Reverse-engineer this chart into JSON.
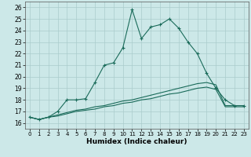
{
  "title": "",
  "xlabel": "Humidex (Indice chaleur)",
  "xlim": [
    -0.5,
    23.5
  ],
  "ylim": [
    15.5,
    26.5
  ],
  "xticks": [
    0,
    1,
    2,
    3,
    4,
    5,
    6,
    7,
    8,
    9,
    10,
    11,
    12,
    13,
    14,
    15,
    16,
    17,
    18,
    19,
    20,
    21,
    22,
    23
  ],
  "yticks": [
    16,
    17,
    18,
    19,
    20,
    21,
    22,
    23,
    24,
    25,
    26
  ],
  "bg_color": "#cce8e8",
  "grid_color": "#aacccc",
  "line_color": "#1a6b5a",
  "line1_x": [
    0,
    1,
    2,
    3,
    4,
    5,
    6,
    7,
    8,
    9,
    10,
    11,
    12,
    13,
    14,
    15,
    16,
    17,
    18,
    19,
    20,
    21,
    22,
    23
  ],
  "line1_y": [
    16.5,
    16.3,
    16.5,
    17.0,
    18.0,
    18.0,
    18.1,
    19.5,
    21.0,
    21.2,
    22.5,
    25.8,
    23.3,
    24.3,
    24.5,
    25.0,
    24.2,
    23.0,
    22.0,
    20.3,
    19.0,
    18.0,
    17.5,
    17.5
  ],
  "line2_x": [
    0,
    1,
    2,
    3,
    4,
    5,
    6,
    7,
    8,
    9,
    10,
    11,
    12,
    13,
    14,
    15,
    16,
    17,
    18,
    19,
    20,
    21,
    22,
    23
  ],
  "line2_y": [
    16.5,
    16.3,
    16.5,
    16.7,
    16.9,
    17.1,
    17.2,
    17.4,
    17.5,
    17.7,
    17.9,
    18.0,
    18.2,
    18.4,
    18.6,
    18.8,
    19.0,
    19.2,
    19.4,
    19.5,
    19.3,
    17.5,
    17.5,
    17.5
  ],
  "line3_x": [
    0,
    1,
    2,
    3,
    4,
    5,
    6,
    7,
    8,
    9,
    10,
    11,
    12,
    13,
    14,
    15,
    16,
    17,
    18,
    19,
    20,
    21,
    22,
    23
  ],
  "line3_y": [
    16.5,
    16.3,
    16.5,
    16.6,
    16.8,
    17.0,
    17.1,
    17.2,
    17.4,
    17.5,
    17.7,
    17.8,
    18.0,
    18.1,
    18.3,
    18.5,
    18.6,
    18.8,
    19.0,
    19.1,
    18.9,
    17.4,
    17.4,
    17.4
  ]
}
